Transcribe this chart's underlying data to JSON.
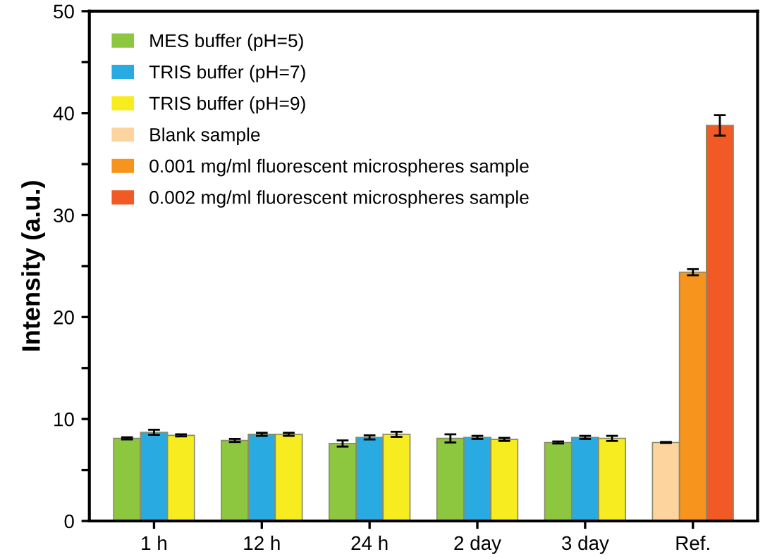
{
  "chart_data": {
    "type": "bar",
    "ylabel": "Intensity (a.u.)",
    "categories": [
      "1 h",
      "12 h",
      "24 h",
      "2 day",
      "3 day",
      "Ref."
    ],
    "series": [
      {
        "name": "MES buffer (pH=5)",
        "color": "#8dc63f",
        "values": [
          8.1,
          7.9,
          7.6,
          8.1,
          7.7,
          null
        ],
        "errors": [
          0.1,
          0.15,
          0.3,
          0.4,
          0.1,
          null
        ]
      },
      {
        "name": "TRIS buffer (pH=7)",
        "color": "#29abe2",
        "values": [
          8.7,
          8.5,
          8.2,
          8.2,
          8.2,
          null
        ],
        "errors": [
          0.25,
          0.15,
          0.2,
          0.15,
          0.15,
          null
        ]
      },
      {
        "name": "TRIS buffer (pH=9)",
        "color": "#f7ec1f",
        "values": [
          8.4,
          8.5,
          8.5,
          8.0,
          8.1,
          null
        ],
        "errors": [
          0.1,
          0.15,
          0.25,
          0.15,
          0.25,
          null
        ]
      },
      {
        "name": "Blank sample",
        "color": "#fdd49e",
        "values": [
          null,
          null,
          null,
          null,
          null,
          7.7
        ],
        "errors": [
          null,
          null,
          null,
          null,
          null,
          0.05
        ]
      },
      {
        "name": "0.001 mg/ml fluorescent microspheres sample",
        "color": "#f7941d",
        "values": [
          null,
          null,
          null,
          null,
          null,
          24.4
        ],
        "errors": [
          null,
          null,
          null,
          null,
          null,
          0.3
        ]
      },
      {
        "name": "0.002 mg/ml fluorescent microspheres sample",
        "color": "#f15a24",
        "values": [
          null,
          null,
          null,
          null,
          null,
          38.8
        ],
        "errors": [
          null,
          null,
          null,
          null,
          null,
          1.0
        ]
      }
    ],
    "ylim": [
      0,
      50
    ],
    "yticks": [
      0,
      {
        "value": 5,
        "label": null
      },
      10,
      {
        "value": 15,
        "label": null
      },
      20,
      {
        "value": 25,
        "label": null
      },
      30,
      {
        "value": 35,
        "label": null
      },
      40,
      {
        "value": 45,
        "label": null
      },
      50
    ],
    "grid": false,
    "legend": "top left"
  }
}
